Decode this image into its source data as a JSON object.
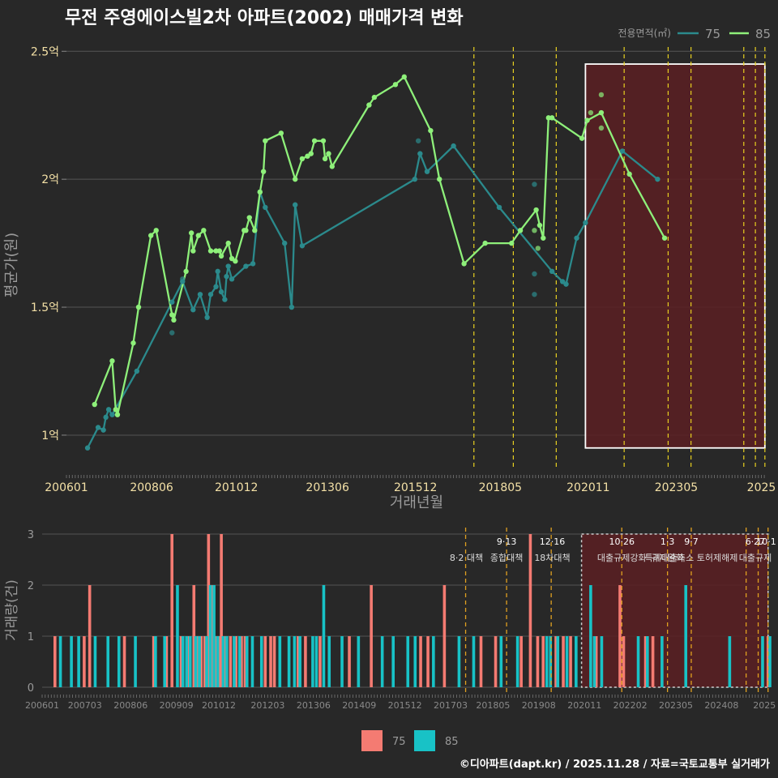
{
  "colors": {
    "bg": "#282828",
    "grid": "#555555",
    "series75_line": "#2b8a8c",
    "series85_line": "#8ef07a",
    "bar75": "#f47b72",
    "bar85": "#18c2c6",
    "policy": "#e8d020",
    "policy_bottom": "#e0a020",
    "highlight_fill": "#5a1e22",
    "highlight_stroke": "#ffffff",
    "title": "#ffffff",
    "axis_text": "#f3e0a6",
    "axis_label": "#9a9a9a",
    "bottom_tick": "#8a8a8a"
  },
  "footer": "©디아파트(dapt.kr) / 2025.11.28 / 자료=국토교통부 실거래가",
  "chart_data": [
    {
      "type": "line",
      "title": "무전 주영에이스빌2차 아파트(2002) 매매가격 변화",
      "xlabel": "거래년월",
      "ylabel": "평균가(원)",
      "x_range": [
        2006.0,
        2025.9
      ],
      "ylim": [
        0.87,
        2.58
      ],
      "yticks": [
        {
          "v": 1.0,
          "label": "1억"
        },
        {
          "v": 1.5,
          "label": "1.5억"
        },
        {
          "v": 2.0,
          "label": "2억"
        },
        {
          "v": 2.5,
          "label": "2.5억"
        }
      ],
      "xticks": [
        {
          "v": 2006.0,
          "label": "200601"
        },
        {
          "v": 2008.42,
          "label": "200806"
        },
        {
          "v": 2010.83,
          "label": "201012"
        },
        {
          "v": 2013.42,
          "label": "201306"
        },
        {
          "v": 2015.92,
          "label": "201512"
        },
        {
          "v": 2018.33,
          "label": "201805"
        },
        {
          "v": 2020.83,
          "label": "202011"
        },
        {
          "v": 2023.33,
          "label": "202305"
        },
        {
          "v": 2025.75,
          "label": "2025"
        }
      ],
      "legend": {
        "title": "전용면적(㎡)",
        "position": "top-right",
        "entries": [
          "75",
          "85"
        ]
      },
      "highlight_range": [
        2020.75,
        2025.85
      ],
      "policy_lines": [
        2017.58,
        2018.7,
        2019.92,
        2021.85,
        2023.1,
        2023.75,
        2025.25,
        2025.58,
        2025.85
      ],
      "series": [
        {
          "name": "75",
          "points": [
            [
              2006.6,
              0.95
            ],
            [
              2006.9,
              1.03
            ],
            [
              2007.05,
              1.02
            ],
            [
              2007.12,
              1.07
            ],
            [
              2007.2,
              1.1
            ],
            [
              2007.3,
              1.08
            ],
            [
              2008.0,
              1.25
            ],
            [
              2009.0,
              1.52
            ],
            [
              2009.3,
              1.6
            ],
            [
              2009.6,
              1.49
            ],
            [
              2009.8,
              1.55
            ],
            [
              2010.0,
              1.46
            ],
            [
              2010.1,
              1.55
            ],
            [
              2010.25,
              1.58
            ],
            [
              2010.3,
              1.64
            ],
            [
              2010.4,
              1.56
            ],
            [
              2010.5,
              1.53
            ],
            [
              2010.55,
              1.62
            ],
            [
              2010.6,
              1.66
            ],
            [
              2010.7,
              1.61
            ],
            [
              2011.1,
              1.66
            ],
            [
              2011.3,
              1.67
            ],
            [
              2011.5,
              1.95
            ],
            [
              2011.65,
              1.89
            ],
            [
              2012.2,
              1.75
            ],
            [
              2012.4,
              1.5
            ],
            [
              2012.5,
              1.9
            ],
            [
              2012.7,
              1.74
            ],
            [
              2015.9,
              2.0
            ],
            [
              2016.05,
              2.1
            ],
            [
              2016.25,
              2.03
            ],
            [
              2017.0,
              2.13
            ],
            [
              2018.3,
              1.89
            ],
            [
              2019.8,
              1.64
            ],
            [
              2020.1,
              1.6
            ],
            [
              2020.2,
              1.59
            ],
            [
              2020.5,
              1.77
            ],
            [
              2020.75,
              1.83
            ],
            [
              2021.8,
              2.11
            ],
            [
              2022.8,
              2.0
            ]
          ],
          "scatter": [
            [
              2009.0,
              1.4
            ],
            [
              2009.3,
              1.61
            ],
            [
              2016.0,
              2.15
            ],
            [
              2019.3,
              1.98
            ],
            [
              2019.3,
              1.63
            ],
            [
              2019.3,
              1.55
            ]
          ]
        },
        {
          "name": "85",
          "points": [
            [
              2006.8,
              1.12
            ],
            [
              2007.3,
              1.29
            ],
            [
              2007.4,
              1.1
            ],
            [
              2007.45,
              1.08
            ],
            [
              2007.9,
              1.36
            ],
            [
              2008.05,
              1.5
            ],
            [
              2008.4,
              1.78
            ],
            [
              2008.55,
              1.8
            ],
            [
              2009.0,
              1.47
            ],
            [
              2009.05,
              1.45
            ],
            [
              2009.4,
              1.64
            ],
            [
              2009.55,
              1.79
            ],
            [
              2009.6,
              1.72
            ],
            [
              2009.75,
              1.78
            ],
            [
              2009.9,
              1.8
            ],
            [
              2010.1,
              1.72
            ],
            [
              2010.25,
              1.72
            ],
            [
              2010.35,
              1.72
            ],
            [
              2010.4,
              1.7
            ],
            [
              2010.6,
              1.75
            ],
            [
              2010.7,
              1.69
            ],
            [
              2010.8,
              1.68
            ],
            [
              2011.05,
              1.8
            ],
            [
              2011.1,
              1.8
            ],
            [
              2011.2,
              1.85
            ],
            [
              2011.35,
              1.8
            ],
            [
              2011.5,
              1.95
            ],
            [
              2011.6,
              2.03
            ],
            [
              2011.65,
              2.15
            ],
            [
              2012.1,
              2.18
            ],
            [
              2012.5,
              2.0
            ],
            [
              2012.7,
              2.08
            ],
            [
              2012.85,
              2.09
            ],
            [
              2012.95,
              2.1
            ],
            [
              2013.05,
              2.15
            ],
            [
              2013.3,
              2.15
            ],
            [
              2013.35,
              2.08
            ],
            [
              2013.45,
              2.1
            ],
            [
              2013.55,
              2.05
            ],
            [
              2014.6,
              2.29
            ],
            [
              2014.75,
              2.32
            ],
            [
              2015.35,
              2.37
            ],
            [
              2015.6,
              2.4
            ],
            [
              2016.35,
              2.19
            ],
            [
              2016.6,
              2.0
            ],
            [
              2017.3,
              1.67
            ],
            [
              2017.9,
              1.75
            ],
            [
              2018.65,
              1.75
            ],
            [
              2018.9,
              1.8
            ],
            [
              2019.35,
              1.88
            ],
            [
              2019.45,
              1.82
            ],
            [
              2019.55,
              1.77
            ],
            [
              2019.7,
              2.24
            ],
            [
              2019.8,
              2.24
            ],
            [
              2020.65,
              2.16
            ],
            [
              2020.8,
              2.23
            ],
            [
              2021.2,
              2.26
            ],
            [
              2022.0,
              2.02
            ],
            [
              2023.0,
              1.77
            ]
          ],
          "scatter": [
            [
              2019.3,
              1.8
            ],
            [
              2019.4,
              1.73
            ],
            [
              2020.9,
              2.26
            ],
            [
              2021.2,
              2.33
            ],
            [
              2021.2,
              2.2
            ]
          ]
        }
      ]
    },
    {
      "type": "bar",
      "ylabel": "거래량(건)",
      "x_range": [
        2006.0,
        2025.9
      ],
      "ylim": [
        0,
        3
      ],
      "yticks": [
        0,
        1,
        2,
        3
      ],
      "xticks": [
        {
          "v": 2006.0,
          "label": "200601"
        },
        {
          "v": 2007.17,
          "label": "200703"
        },
        {
          "v": 2008.42,
          "label": "200806"
        },
        {
          "v": 2009.67,
          "label": "200909"
        },
        {
          "v": 2010.83,
          "label": "201012"
        },
        {
          "v": 2012.17,
          "label": "201203"
        },
        {
          "v": 2013.42,
          "label": "201306"
        },
        {
          "v": 2014.67,
          "label": "201409"
        },
        {
          "v": 2015.92,
          "label": "201512"
        },
        {
          "v": 2017.17,
          "label": "201703"
        },
        {
          "v": 2018.33,
          "label": "201805"
        },
        {
          "v": 2019.58,
          "label": "201908"
        },
        {
          "v": 2020.83,
          "label": "202011"
        },
        {
          "v": 2022.08,
          "label": "202202"
        },
        {
          "v": 2023.33,
          "label": "202305"
        },
        {
          "v": 2024.58,
          "label": "202408"
        },
        {
          "v": 2025.75,
          "label": "2025"
        }
      ],
      "legend": {
        "position": "bottom",
        "entries": [
          "75",
          "85"
        ]
      },
      "highlight_range": [
        2020.75,
        2025.85
      ],
      "policy_lines": [
        2017.58,
        2018.7,
        2019.92,
        2021.85,
        2023.1,
        2023.75,
        2025.25,
        2025.58,
        2025.85
      ],
      "annotations": [
        {
          "x": 2017.6,
          "line1": "",
          "line2": "8·2 대책"
        },
        {
          "x": 2018.7,
          "line1": "9·13",
          "line2": "종합대책"
        },
        {
          "x": 2019.95,
          "line1": "12·16",
          "line2": "18차대책"
        },
        {
          "x": 2021.85,
          "line1": "10·26",
          "line2": "대출규제강화"
        },
        {
          "x": 2023.1,
          "line1": "1·3",
          "line2": "규제완화"
        },
        {
          "x": 2023.75,
          "line1": "9·7",
          "line2": "특례대출축소 토허제해제"
        },
        {
          "x": 2025.5,
          "line1": "6·27",
          "line2": "대출규제"
        },
        {
          "x": 2025.8,
          "line1": "10·1",
          "line2": ""
        }
      ],
      "bars75": [
        [
          2006.35,
          1
        ],
        [
          2007.15,
          1
        ],
        [
          2007.3,
          2
        ],
        [
          2008.25,
          1
        ],
        [
          2009.05,
          1
        ],
        [
          2009.4,
          1
        ],
        [
          2009.55,
          3
        ],
        [
          2009.8,
          1
        ],
        [
          2010.0,
          1
        ],
        [
          2010.15,
          2
        ],
        [
          2010.25,
          1
        ],
        [
          2010.35,
          1
        ],
        [
          2010.45,
          1
        ],
        [
          2010.55,
          3
        ],
        [
          2010.65,
          2
        ],
        [
          2010.75,
          1
        ],
        [
          2010.85,
          1
        ],
        [
          2010.9,
          3
        ],
        [
          2011.0,
          1
        ],
        [
          2011.15,
          1
        ],
        [
          2011.3,
          1
        ],
        [
          2011.45,
          1
        ],
        [
          2011.55,
          1
        ],
        [
          2012.1,
          1
        ],
        [
          2012.25,
          1
        ],
        [
          2012.35,
          1
        ],
        [
          2013.0,
          1
        ],
        [
          2013.2,
          1
        ],
        [
          2013.6,
          1
        ],
        [
          2014.4,
          1
        ],
        [
          2015.0,
          2
        ],
        [
          2016.35,
          1
        ],
        [
          2016.55,
          1
        ],
        [
          2017.0,
          2
        ],
        [
          2018.0,
          1
        ],
        [
          2018.4,
          1
        ],
        [
          2019.1,
          1
        ],
        [
          2019.35,
          3
        ],
        [
          2019.55,
          1
        ],
        [
          2019.7,
          1
        ],
        [
          2020.05,
          1
        ],
        [
          2020.25,
          1
        ],
        [
          2020.45,
          1
        ],
        [
          2021.15,
          1
        ],
        [
          2021.8,
          2
        ],
        [
          2021.9,
          1
        ],
        [
          2022.5,
          1
        ],
        [
          2022.7,
          1
        ],
        [
          2025.85,
          1
        ]
      ],
      "bars85": [
        [
          2006.5,
          1
        ],
        [
          2006.8,
          1
        ],
        [
          2007.0,
          1
        ],
        [
          2007.45,
          1
        ],
        [
          2007.8,
          1
        ],
        [
          2008.1,
          1
        ],
        [
          2008.55,
          1
        ],
        [
          2009.1,
          1
        ],
        [
          2009.35,
          1
        ],
        [
          2009.7,
          2
        ],
        [
          2009.85,
          1
        ],
        [
          2009.95,
          1
        ],
        [
          2010.05,
          1
        ],
        [
          2010.2,
          1
        ],
        [
          2010.3,
          1
        ],
        [
          2010.5,
          1
        ],
        [
          2010.6,
          2
        ],
        [
          2010.7,
          2
        ],
        [
          2010.8,
          1
        ],
        [
          2010.95,
          1
        ],
        [
          2011.05,
          1
        ],
        [
          2011.25,
          1
        ],
        [
          2011.4,
          1
        ],
        [
          2011.6,
          1
        ],
        [
          2011.75,
          1
        ],
        [
          2012.0,
          1
        ],
        [
          2012.5,
          1
        ],
        [
          2012.75,
          1
        ],
        [
          2012.9,
          1
        ],
        [
          2013.05,
          1
        ],
        [
          2013.4,
          1
        ],
        [
          2013.5,
          1
        ],
        [
          2013.7,
          2
        ],
        [
          2013.85,
          1
        ],
        [
          2014.2,
          1
        ],
        [
          2014.65,
          1
        ],
        [
          2015.3,
          1
        ],
        [
          2015.6,
          1
        ],
        [
          2016.0,
          1
        ],
        [
          2016.2,
          1
        ],
        [
          2016.7,
          1
        ],
        [
          2017.4,
          1
        ],
        [
          2017.8,
          1
        ],
        [
          2018.55,
          1
        ],
        [
          2019.0,
          1
        ],
        [
          2019.8,
          1
        ],
        [
          2019.9,
          1
        ],
        [
          2020.1,
          1
        ],
        [
          2020.35,
          1
        ],
        [
          2020.6,
          1
        ],
        [
          2021.0,
          2
        ],
        [
          2021.1,
          1
        ],
        [
          2021.3,
          1
        ],
        [
          2022.3,
          1
        ],
        [
          2022.55,
          1
        ],
        [
          2022.95,
          1
        ],
        [
          2023.6,
          2
        ],
        [
          2024.8,
          1
        ],
        [
          2025.7,
          1
        ],
        [
          2025.9,
          1
        ]
      ]
    }
  ]
}
